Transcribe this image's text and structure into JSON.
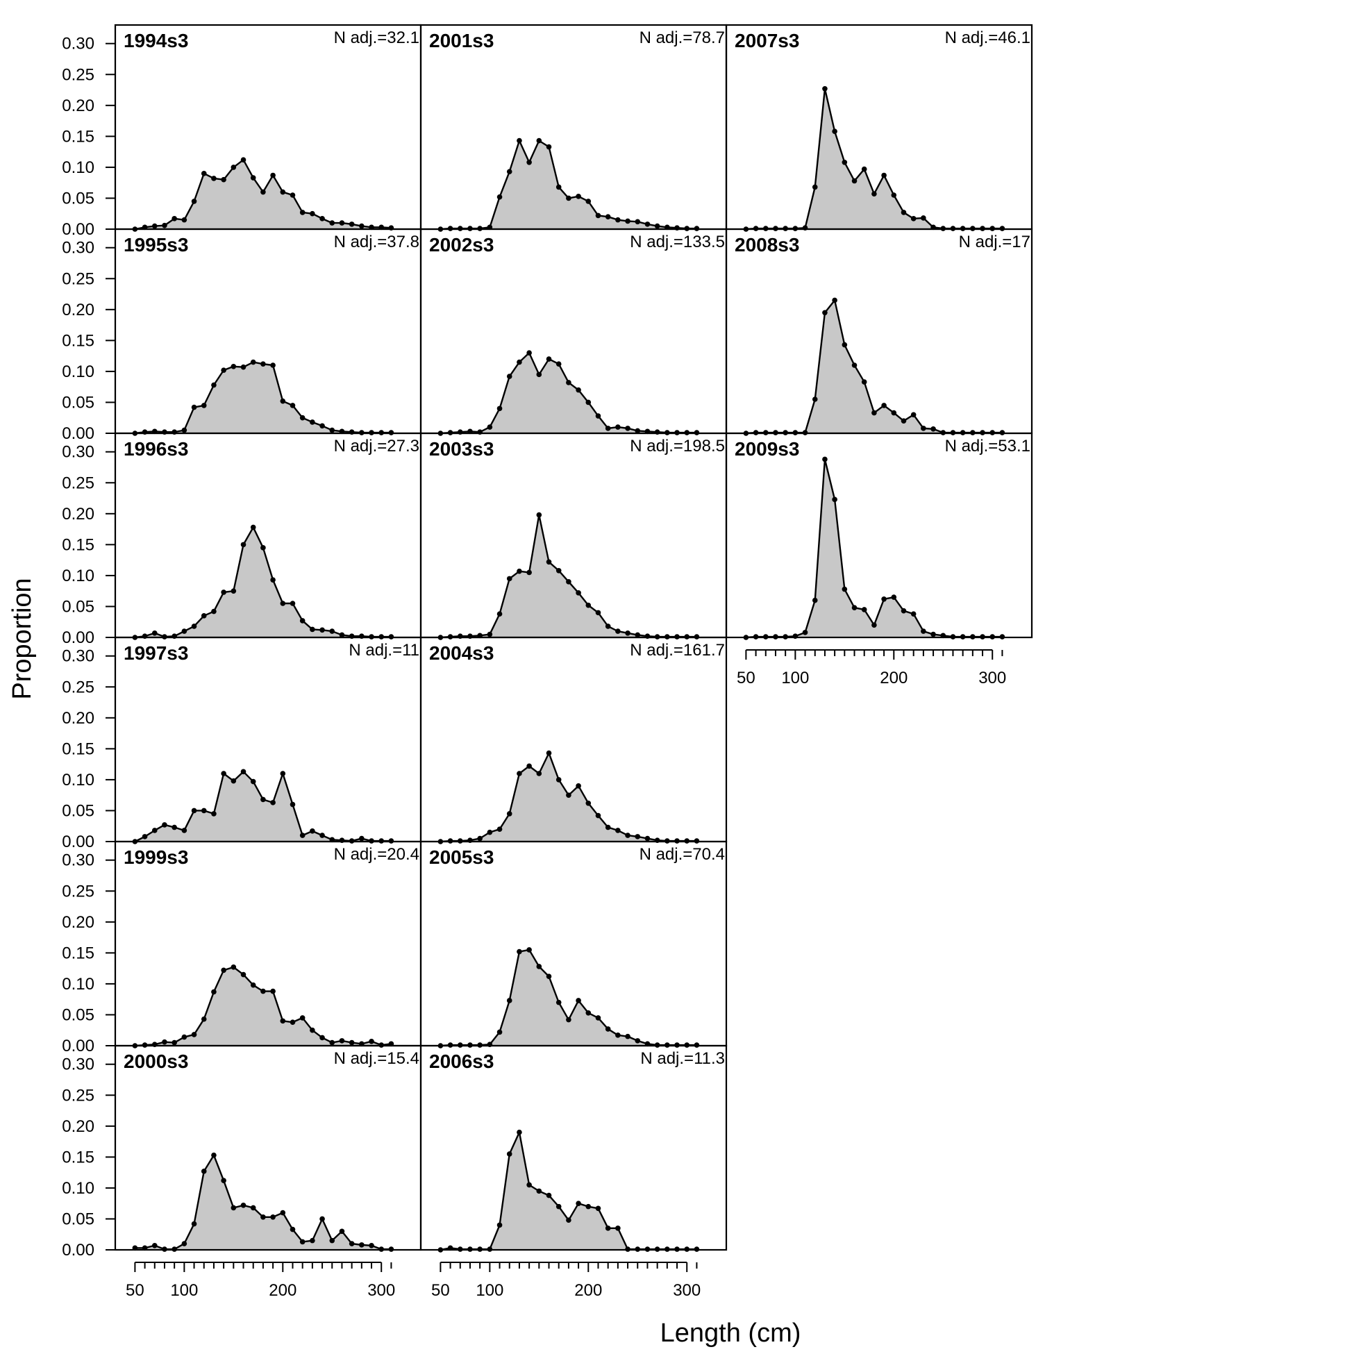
{
  "chart_data": {
    "type": "area",
    "xlabel": "Length (cm)",
    "ylabel": "Proportion",
    "xlim": [
      30,
      340
    ],
    "ylim": [
      0,
      0.33
    ],
    "x_ticks": [
      50,
      100,
      200,
      300
    ],
    "y_ticks": [
      "0.00",
      "0.05",
      "0.10",
      "0.15",
      "0.20",
      "0.25",
      "0.30"
    ],
    "x": [
      50,
      60,
      70,
      80,
      90,
      100,
      110,
      120,
      130,
      140,
      150,
      160,
      170,
      180,
      190,
      200,
      210,
      220,
      230,
      240,
      250,
      260,
      270,
      280,
      290,
      300,
      310
    ],
    "colors": {
      "fill": "#c8c8c8",
      "line": "#000000",
      "frame": "#000000"
    },
    "layout": "multi-panel, filled by column",
    "panels": [
      {
        "title": "1994s3",
        "n_label": "N adj.=32.1",
        "values": [
          0,
          0.003,
          0.005,
          0.006,
          0.017,
          0.015,
          0.045,
          0.09,
          0.082,
          0.08,
          0.1,
          0.112,
          0.083,
          0.06,
          0.087,
          0.06,
          0.055,
          0.027,
          0.025,
          0.017,
          0.01,
          0.01,
          0.008,
          0.005,
          0.003,
          0.003,
          0.002
        ]
      },
      {
        "title": "1995s3",
        "n_label": "N adj.=37.8",
        "values": [
          0,
          0.002,
          0.003,
          0.002,
          0.002,
          0.005,
          0.042,
          0.045,
          0.078,
          0.102,
          0.108,
          0.107,
          0.115,
          0.112,
          0.11,
          0.052,
          0.045,
          0.025,
          0.018,
          0.012,
          0.005,
          0.003,
          0.002,
          0.001,
          0.001,
          0.001,
          0.001
        ]
      },
      {
        "title": "1996s3",
        "n_label": "N adj.=27.3",
        "values": [
          0,
          0.002,
          0.007,
          0.001,
          0.002,
          0.01,
          0.018,
          0.035,
          0.042,
          0.073,
          0.075,
          0.15,
          0.178,
          0.145,
          0.093,
          0.055,
          0.055,
          0.027,
          0.013,
          0.012,
          0.01,
          0.004,
          0.002,
          0.002,
          0.001,
          0.001,
          0.001
        ]
      },
      {
        "title": "1997s3",
        "n_label": "N adj.=11",
        "values": [
          0,
          0.008,
          0.018,
          0.027,
          0.023,
          0.018,
          0.05,
          0.05,
          0.045,
          0.11,
          0.098,
          0.113,
          0.097,
          0.068,
          0.063,
          0.11,
          0.06,
          0.01,
          0.017,
          0.01,
          0.003,
          0.002,
          0.001,
          0.005,
          0.001,
          0.001,
          0.001
        ]
      },
      {
        "title": "1999s3",
        "n_label": "N adj.=20.4",
        "values": [
          0,
          0.001,
          0.002,
          0.006,
          0.005,
          0.014,
          0.018,
          0.043,
          0.087,
          0.122,
          0.127,
          0.115,
          0.098,
          0.088,
          0.088,
          0.04,
          0.038,
          0.045,
          0.025,
          0.013,
          0.005,
          0.008,
          0.005,
          0.003,
          0.007,
          0.001,
          0.003
        ]
      },
      {
        "title": "2000s3",
        "n_label": "N adj.=15.4",
        "values": [
          0.003,
          0.003,
          0.007,
          0.001,
          0.001,
          0.01,
          0.042,
          0.127,
          0.153,
          0.112,
          0.068,
          0.072,
          0.068,
          0.053,
          0.053,
          0.06,
          0.033,
          0.013,
          0.015,
          0.05,
          0.015,
          0.03,
          0.01,
          0.008,
          0.007,
          0.001,
          0.001
        ]
      },
      {
        "title": "2001s3",
        "n_label": "N adj.=78.7",
        "values": [
          0,
          0.001,
          0.001,
          0.001,
          0.001,
          0.003,
          0.052,
          0.093,
          0.143,
          0.108,
          0.143,
          0.133,
          0.068,
          0.05,
          0.053,
          0.045,
          0.022,
          0.02,
          0.015,
          0.013,
          0.012,
          0.008,
          0.005,
          0.003,
          0.002,
          0.001,
          0.001
        ]
      },
      {
        "title": "2002s3",
        "n_label": "N adj.=133.5",
        "values": [
          0,
          0.001,
          0.002,
          0.003,
          0.002,
          0.01,
          0.04,
          0.092,
          0.115,
          0.13,
          0.095,
          0.12,
          0.112,
          0.082,
          0.07,
          0.05,
          0.028,
          0.008,
          0.01,
          0.008,
          0.004,
          0.003,
          0.002,
          0.001,
          0.001,
          0.001,
          0.001
        ]
      },
      {
        "title": "2003s3",
        "n_label": "N adj.=198.5",
        "values": [
          0,
          0.001,
          0.002,
          0.002,
          0.003,
          0.005,
          0.038,
          0.095,
          0.107,
          0.105,
          0.198,
          0.122,
          0.108,
          0.09,
          0.072,
          0.052,
          0.04,
          0.018,
          0.01,
          0.007,
          0.004,
          0.002,
          0.001,
          0.001,
          0.001,
          0.001,
          0.001
        ]
      },
      {
        "title": "2004s3",
        "n_label": "N adj.=161.7",
        "values": [
          0,
          0.001,
          0.001,
          0.002,
          0.005,
          0.015,
          0.02,
          0.045,
          0.11,
          0.122,
          0.11,
          0.143,
          0.1,
          0.075,
          0.09,
          0.062,
          0.042,
          0.023,
          0.018,
          0.01,
          0.008,
          0.005,
          0.002,
          0.001,
          0.001,
          0.001,
          0.001
        ]
      },
      {
        "title": "2005s3",
        "n_label": "N adj.=70.4",
        "values": [
          0,
          0.001,
          0.001,
          0.001,
          0.001,
          0.002,
          0.022,
          0.073,
          0.152,
          0.155,
          0.128,
          0.112,
          0.07,
          0.042,
          0.073,
          0.053,
          0.045,
          0.027,
          0.017,
          0.015,
          0.008,
          0.003,
          0.001,
          0.001,
          0.001,
          0.001,
          0.001
        ]
      },
      {
        "title": "2006s3",
        "n_label": "N adj.=11.3",
        "values": [
          0,
          0.003,
          0.001,
          0.001,
          0.001,
          0.001,
          0.04,
          0.155,
          0.19,
          0.105,
          0.095,
          0.088,
          0.07,
          0.048,
          0.075,
          0.07,
          0.067,
          0.035,
          0.035,
          0.001,
          0.001,
          0.001,
          0.001,
          0.001,
          0.001,
          0.001,
          0.001
        ]
      },
      {
        "title": "2007s3",
        "n_label": "N adj.=46.1",
        "values": [
          0,
          0.001,
          0.001,
          0.001,
          0.001,
          0.001,
          0.002,
          0.068,
          0.227,
          0.158,
          0.108,
          0.078,
          0.097,
          0.057,
          0.087,
          0.055,
          0.027,
          0.017,
          0.018,
          0.003,
          0.001,
          0.001,
          0.001,
          0.001,
          0.001,
          0.001,
          0.001
        ]
      },
      {
        "title": "2008s3",
        "n_label": "N adj.=17",
        "values": [
          0,
          0.001,
          0.001,
          0.001,
          0.001,
          0.001,
          0.001,
          0.055,
          0.195,
          0.215,
          0.143,
          0.11,
          0.083,
          0.033,
          0.045,
          0.033,
          0.02,
          0.03,
          0.008,
          0.007,
          0.001,
          0.001,
          0.001,
          0.001,
          0.001,
          0.001,
          0.001
        ]
      },
      {
        "title": "2009s3",
        "n_label": "N adj.=53.1",
        "values": [
          0,
          0.001,
          0.001,
          0.001,
          0.001,
          0.002,
          0.008,
          0.06,
          0.288,
          0.223,
          0.078,
          0.048,
          0.045,
          0.02,
          0.062,
          0.065,
          0.043,
          0.038,
          0.01,
          0.005,
          0.003,
          0.001,
          0.001,
          0.001,
          0.001,
          0.001,
          0.001
        ]
      }
    ]
  }
}
